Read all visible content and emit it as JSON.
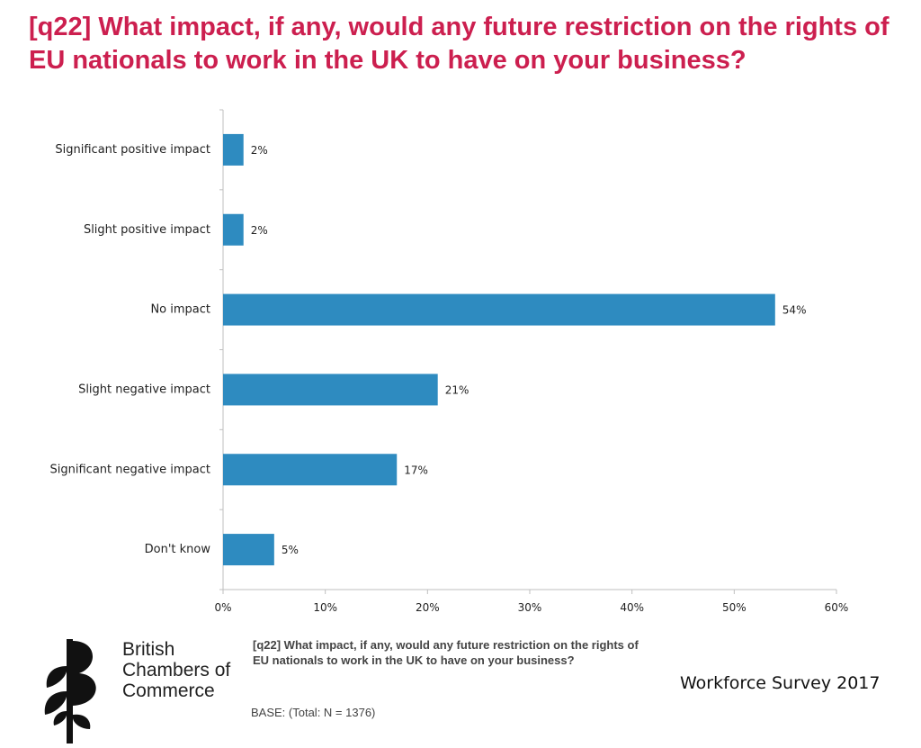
{
  "title": "[q22] What impact, if any, would any future restriction on the rights of EU nationals to work in the UK to have on your business?",
  "footer": {
    "question": "[q22] What impact, if any, would any future restriction on the rights of EU nationals to work in the UK to have on your business?",
    "base": "BASE: (Total: N = 1376)",
    "survey": "Workforce Survey 2017"
  },
  "logo": {
    "line1": "British",
    "line2": "Chambers of",
    "line3": "Commerce",
    "icon": "plant-logo-icon"
  },
  "colors": {
    "title": "#cc1f4f",
    "bar": "#2e8bc0"
  },
  "chart_data": {
    "type": "bar",
    "orientation": "horizontal",
    "categories": [
      "Significant positive impact",
      "Slight positive impact",
      "No impact",
      "Slight negative impact",
      "Significant negative impact",
      "Don't know"
    ],
    "values": [
      2,
      2,
      54,
      21,
      17,
      5
    ],
    "data_labels": [
      "2%",
      "2%",
      "54%",
      "21%",
      "17%",
      "5%"
    ],
    "xlim": [
      0,
      60
    ],
    "xticks": [
      0,
      10,
      20,
      30,
      40,
      50,
      60
    ],
    "xtick_labels": [
      "0%",
      "10%",
      "20%",
      "30%",
      "40%",
      "50%",
      "60%"
    ],
    "title": "",
    "xlabel": "",
    "ylabel": "",
    "grid": false,
    "legend": "none"
  }
}
